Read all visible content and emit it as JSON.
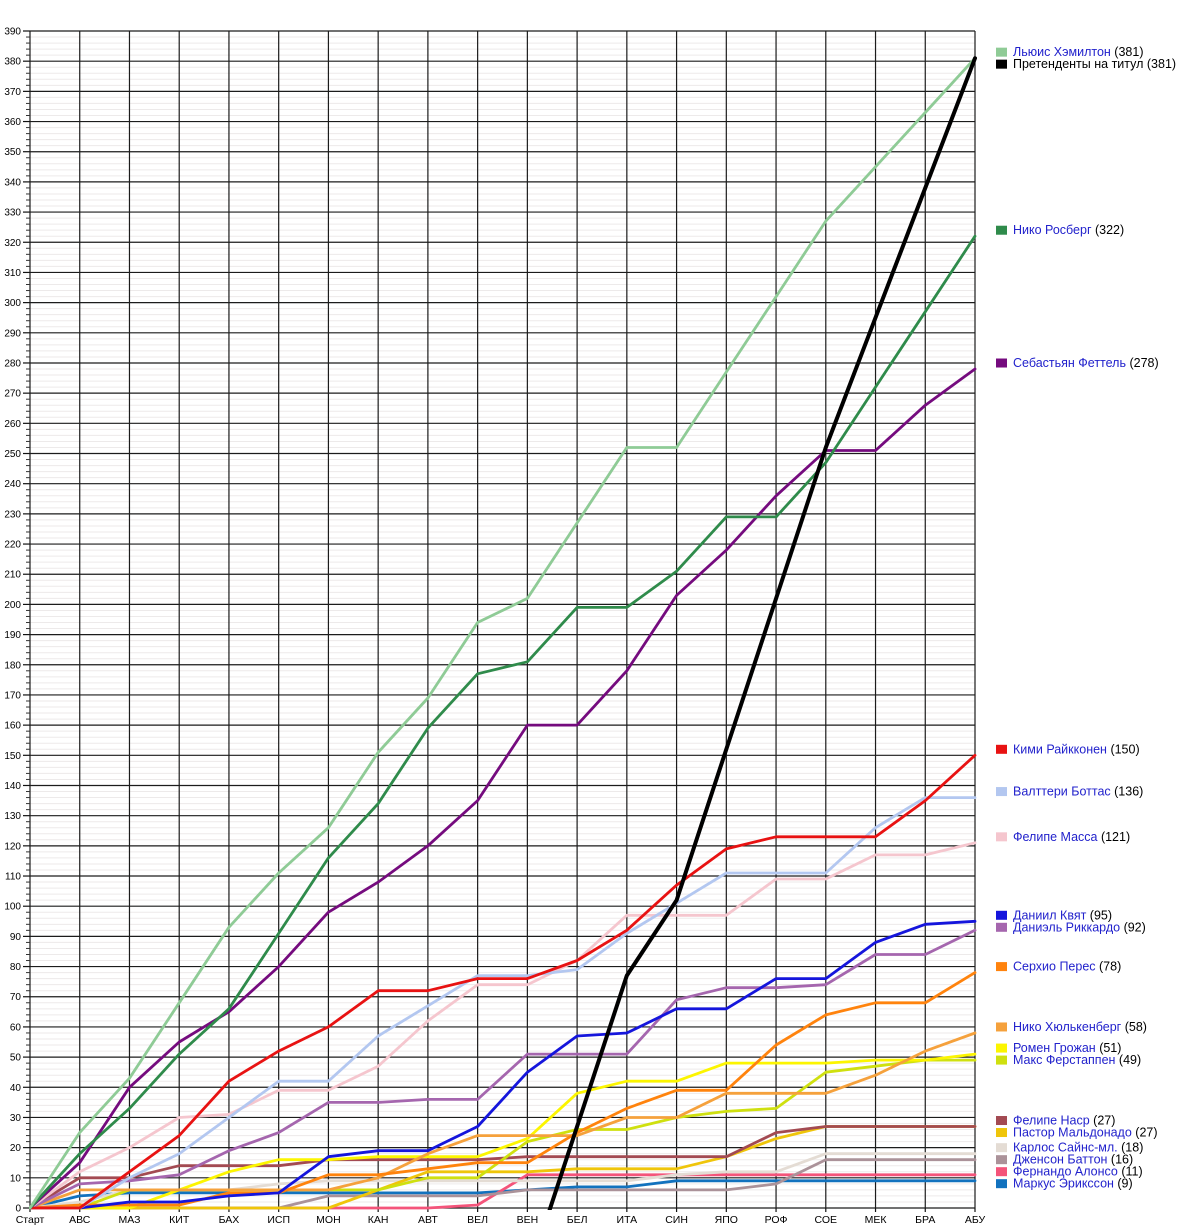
{
  "page": {
    "background": "#ffffff",
    "description_visible_text_language": "ru"
  },
  "chart_data": {
    "type": "line",
    "title": "",
    "xlabel": "",
    "ylabel": "",
    "x_categories": [
      "Старт",
      "АВС",
      "МАЗ",
      "КИТ",
      "БАХ",
      "ИСП",
      "МОН",
      "КАН",
      "АВТ",
      "ВЕЛ",
      "ВЕН",
      "БЕЛ",
      "ИТА",
      "СИН",
      "ЯПО",
      "РОФ",
      "СОЕ",
      "МЕК",
      "БРА",
      "АБУ"
    ],
    "y_axis": {
      "min": 0,
      "max": 390,
      "major_step": 10,
      "minor_step": 2,
      "tick_labels": [
        0,
        10,
        20,
        30,
        40,
        50,
        60,
        70,
        80,
        90,
        100,
        110,
        120,
        130,
        140,
        150,
        160,
        170,
        180,
        190,
        200,
        210,
        220,
        230,
        240,
        250,
        260,
        270,
        280,
        290,
        300,
        310,
        320,
        330,
        340,
        350,
        360,
        370,
        380,
        390
      ]
    },
    "grid": {
      "major": true,
      "minor": true,
      "major_color": "#1c1c1c",
      "minor_color": "#edeaea"
    },
    "legend_position": "right",
    "legend_name_color": "#2222cc",
    "legend_points_color": "#000000",
    "series": [
      {
        "name": "Льюис Хэмилтон",
        "points": 381,
        "color": "#8fcb96",
        "legend_text_color": "#2222cc",
        "width": 2.8,
        "values": [
          0,
          25,
          43,
          68,
          93,
          111,
          126,
          151,
          169,
          194,
          202,
          227,
          252,
          252,
          277,
          302,
          327,
          345,
          363,
          381
        ]
      },
      {
        "name": "Претенденты на титул",
        "points": 381,
        "color": "#000000",
        "legend_text_color": "#000000",
        "width": 4,
        "values": [
          null,
          null,
          null,
          null,
          null,
          null,
          null,
          null,
          null,
          null,
          -23,
          27,
          77,
          102,
          152,
          202,
          252,
          295,
          338,
          381
        ]
      },
      {
        "name": "Нико Росберг",
        "points": 322,
        "color": "#2f8b4b",
        "legend_text_color": "#2222cc",
        "width": 2.8,
        "values": [
          0,
          18,
          33,
          51,
          66,
          91,
          116,
          134,
          159,
          177,
          181,
          199,
          199,
          211,
          229,
          229,
          247,
          272,
          297,
          322
        ]
      },
      {
        "name": "Себастьян Феттель",
        "points": 278,
        "color": "#750b7e",
        "legend_text_color": "#2222cc",
        "width": 2.8,
        "values": [
          0,
          15,
          40,
          55,
          65,
          80,
          98,
          108,
          120,
          135,
          160,
          160,
          178,
          203,
          218,
          236,
          251,
          251,
          266,
          278
        ]
      },
      {
        "name": "Кими Райкконен",
        "points": 150,
        "color": "#e81212",
        "legend_text_color": "#2222cc",
        "width": 2.8,
        "values": [
          0,
          0,
          12,
          24,
          42,
          52,
          60,
          72,
          72,
          76,
          76,
          82,
          92,
          107,
          119,
          123,
          123,
          123,
          135,
          150
        ]
      },
      {
        "name": "Валттери Боттас",
        "points": 136,
        "color": "#b3c7f0",
        "legend_text_color": "#2222cc",
        "width": 2.8,
        "values": [
          0,
          0,
          10,
          18,
          30,
          42,
          42,
          57,
          67,
          77,
          77,
          79,
          91,
          101,
          111,
          111,
          111,
          126,
          136,
          136
        ]
      },
      {
        "name": "Фелипе Масса",
        "points": 121,
        "color": "#f5c6ce",
        "legend_text_color": "#2222cc",
        "width": 2.8,
        "values": [
          0,
          12,
          20,
          30,
          31,
          39,
          39,
          47,
          62,
          74,
          74,
          82,
          97,
          97,
          97,
          109,
          109,
          117,
          117,
          121
        ]
      },
      {
        "name": "Даниил Квят",
        "points": 95,
        "color": "#1515dc",
        "legend_text_color": "#2222cc",
        "width": 2.8,
        "values": [
          0,
          0,
          2,
          2,
          4,
          5,
          17,
          19,
          19,
          27,
          45,
          57,
          58,
          66,
          66,
          76,
          76,
          88,
          94,
          95
        ]
      },
      {
        "name": "Даниэль Риккардо",
        "points": 92,
        "color": "#a566ae",
        "legend_text_color": "#2222cc",
        "width": 2.8,
        "values": [
          0,
          8,
          9,
          11,
          19,
          25,
          35,
          35,
          36,
          36,
          51,
          51,
          51,
          69,
          73,
          73,
          74,
          84,
          84,
          92
        ]
      },
      {
        "name": "Серхио Перес",
        "points": 78,
        "color": "#ff830d",
        "legend_text_color": "#2222cc",
        "width": 2.8,
        "values": [
          0,
          1,
          1,
          1,
          5,
          5,
          11,
          11,
          13,
          15,
          15,
          25,
          33,
          39,
          39,
          54,
          64,
          68,
          68,
          78
        ]
      },
      {
        "name": "Нико Хюлькенберг",
        "points": 58,
        "color": "#f5a13c",
        "legend_text_color": "#2222cc",
        "width": 2.8,
        "values": [
          0,
          6,
          6,
          6,
          6,
          6,
          6,
          10,
          18,
          24,
          24,
          24,
          30,
          30,
          38,
          38,
          38,
          44,
          52,
          58
        ]
      },
      {
        "name": "Ромен Грожан",
        "points": 51,
        "color": "#fcf500",
        "legend_text_color": "#2222cc",
        "width": 2.8,
        "values": [
          0,
          0,
          0,
          6,
          12,
          16,
          16,
          17,
          17,
          17,
          23,
          38,
          42,
          42,
          48,
          48,
          48,
          49,
          49,
          51
        ]
      },
      {
        "name": "Макс Ферстаппен",
        "points": 49,
        "color": "#cfe00f",
        "legend_text_color": "#2222cc",
        "width": 2.8,
        "values": [
          0,
          0,
          6,
          6,
          6,
          6,
          6,
          6,
          10,
          10,
          22,
          26,
          26,
          30,
          32,
          33,
          45,
          47,
          49,
          49
        ]
      },
      {
        "name": "Фелипе Наср",
        "points": 27,
        "color": "#a34a52",
        "legend_text_color": "#2222cc",
        "width": 2.8,
        "values": [
          0,
          10,
          10,
          14,
          14,
          14,
          16,
          16,
          16,
          16,
          17,
          17,
          17,
          17,
          17,
          25,
          27,
          27,
          27,
          27
        ]
      },
      {
        "name": "Пастор Мальдонадо",
        "points": 27,
        "color": "#efc50a",
        "legend_text_color": "#2222cc",
        "width": 2.8,
        "values": [
          0,
          0,
          0,
          0,
          0,
          0,
          0,
          6,
          12,
          12,
          12,
          13,
          13,
          13,
          17,
          23,
          27,
          27,
          27,
          27
        ]
      },
      {
        "name": "Карлос Сайнс-мл.",
        "points": 18,
        "color": "#e4dcd4",
        "legend_text_color": "#2222cc",
        "width": 2.8,
        "values": [
          0,
          2,
          6,
          6,
          6,
          8,
          9,
          9,
          9,
          9,
          9,
          9,
          9,
          11,
          12,
          12,
          18,
          18,
          18,
          18
        ]
      },
      {
        "name": "Дженсон Баттон",
        "points": 16,
        "color": "#ab9299",
        "legend_text_color": "#2222cc",
        "width": 2.8,
        "values": [
          0,
          0,
          0,
          0,
          0,
          0,
          4,
          4,
          4,
          4,
          6,
          6,
          6,
          6,
          6,
          8,
          16,
          16,
          16,
          16
        ]
      },
      {
        "name": "Фернандо Алонсо",
        "points": 11,
        "color": "#f4547a",
        "legend_text_color": "#2222cc",
        "width": 2.8,
        "values": [
          0,
          0,
          0,
          0,
          0,
          0,
          0,
          0,
          0,
          1,
          11,
          11,
          11,
          11,
          11,
          11,
          11,
          11,
          11,
          11
        ]
      },
      {
        "name": "Маркус Эрикссон",
        "points": 9,
        "color": "#1272be",
        "legend_text_color": "#2222cc",
        "width": 2.8,
        "values": [
          0,
          4,
          5,
          5,
          5,
          5,
          5,
          5,
          5,
          5,
          6,
          7,
          7,
          9,
          9,
          9,
          9,
          9,
          9,
          9
        ]
      }
    ]
  }
}
